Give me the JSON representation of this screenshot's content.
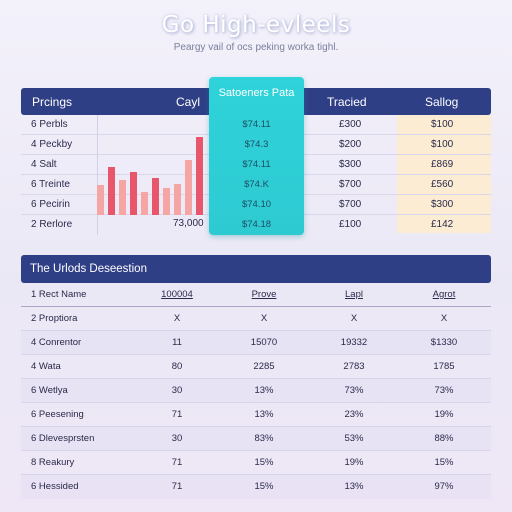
{
  "header": {
    "title": "Go High-evleels",
    "subtitle": "Peargy vail of ocs peking worka tighl."
  },
  "table1": {
    "columns": [
      "Prcings",
      "Cayl",
      "Satoeners Pata",
      "Tracied",
      "Sallog"
    ],
    "rows": [
      {
        "label": "6 Perbls",
        "hl": "$74.11",
        "tracied": "£300",
        "sallog": "$100"
      },
      {
        "label": "4 Peckby",
        "hl": "$74.3",
        "tracied": "$200",
        "sallog": "$100"
      },
      {
        "label": "4 Salt",
        "hl": "$74.11",
        "tracied": "$300",
        "sallog": "£869"
      },
      {
        "label": "6 Treinte",
        "hl": "$74.K",
        "tracied": "$700",
        "sallog": "£560"
      },
      {
        "label": "6 Pecirin",
        "hl": "$74.10",
        "tracied": "$700",
        "sallog": "$300"
      },
      {
        "label": "2 Rerlore",
        "hl": "$74.18",
        "tracied": "£100",
        "sallog": "£142"
      }
    ],
    "bar_total_label": "73,000",
    "bars": [
      {
        "height": 0.38,
        "color": "#f6a5a5"
      },
      {
        "height": 0.62,
        "color": "#e8566b"
      },
      {
        "height": 0.45,
        "color": "#f6a5a5"
      },
      {
        "height": 0.55,
        "color": "#e8566b"
      },
      {
        "height": 0.3,
        "color": "#f6a5a5"
      },
      {
        "height": 0.48,
        "color": "#e8566b"
      },
      {
        "height": 0.35,
        "color": "#f6a5a5"
      },
      {
        "height": 0.4,
        "color": "#f6a5a5"
      },
      {
        "height": 0.7,
        "color": "#f6a5a5"
      },
      {
        "height": 1.0,
        "color": "#e8566b"
      }
    ]
  },
  "table2": {
    "title": "The Urlods Deseestion",
    "columns": [
      "1 Rect Name",
      "100004",
      "Prove",
      "Lapl",
      "Agrot"
    ],
    "rows": [
      [
        "2 Proptiora",
        "X",
        "X",
        "X",
        "X"
      ],
      [
        "4 Conrentor",
        "11",
        "15070",
        "19332",
        "$1330"
      ],
      [
        "4 Wata",
        "80",
        "2285",
        "2783",
        "1785"
      ],
      [
        "6 Wetlya",
        "30",
        "13%",
        "73%",
        "73%"
      ],
      [
        "6 Peesening",
        "71",
        "13%",
        "23%",
        "19%"
      ],
      [
        "6 Dlevesprsten",
        "30",
        "83%",
        "53%",
        "88%"
      ],
      [
        "8 Reakury",
        "71",
        "15%",
        "19%",
        "15%"
      ],
      [
        "6 Hessided",
        "71",
        "15%",
        "13%",
        "97%"
      ]
    ]
  },
  "colors": {
    "header_navy": "#2f3f86",
    "highlight_teal": "#2fd3da",
    "sale_column": "#fcecd4",
    "bar_red": "#e8566b",
    "bar_pink": "#f6a5a5"
  }
}
